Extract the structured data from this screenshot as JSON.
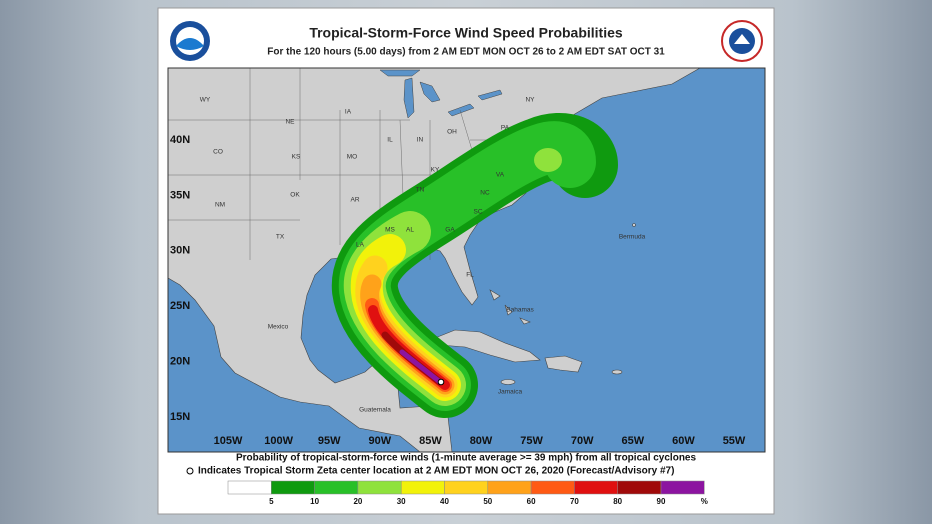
{
  "header": {
    "title": "Tropical-Storm-Force Wind Speed Probabilities",
    "subtitle": "For the 120 hours (5.00 days) from 2 AM EDT MON OCT 26 to 2 AM EDT SAT OCT 31"
  },
  "map": {
    "longitude_labels": [
      "105W",
      "100W",
      "95W",
      "90W",
      "85W",
      "80W",
      "75W",
      "70W",
      "65W",
      "60W",
      "55W"
    ],
    "latitude_labels": [
      "40N",
      "35N",
      "30N",
      "25N",
      "20N",
      "15N"
    ],
    "places": [
      "WY",
      "CO",
      "NE",
      "KS",
      "IA",
      "MO",
      "IL",
      "IN",
      "OH",
      "KY",
      "PA",
      "NY",
      "VA",
      "NC",
      "SC",
      "TN",
      "AR",
      "OK",
      "NM",
      "TX",
      "MS",
      "AL",
      "GA",
      "LA",
      "FL",
      "Mexico",
      "Bahamas",
      "Jamaica",
      "Bermuda",
      "Guatemala"
    ]
  },
  "footer": {
    "notes": [
      "Probability of tropical-storm-force winds (1-minute average >= 39 mph) from all tropical cyclones",
      "Indicates Tropical Storm Zeta center location at 2 AM EDT MON OCT 26, 2020 (Forecast/Advisory #7)"
    ]
  },
  "legend": {
    "labels": [
      "5",
      "10",
      "20",
      "30",
      "40",
      "50",
      "60",
      "70",
      "80",
      "90",
      "%"
    ],
    "colors": [
      "#ffffff",
      "#0f9a0f",
      "#28c028",
      "#8fe23c",
      "#f2f20a",
      "#ffd21e",
      "#ffa21a",
      "#ff5a14",
      "#e01010",
      "#a00a0a",
      "#8c14a0"
    ]
  }
}
